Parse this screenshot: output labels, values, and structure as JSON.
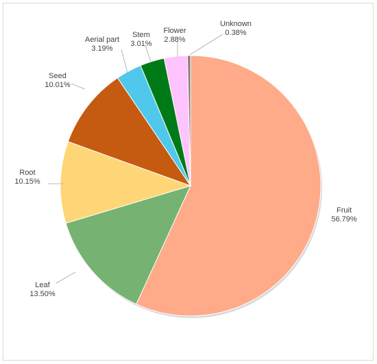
{
  "chart_data": {
    "type": "pie",
    "title": "",
    "legend": "none",
    "slices": [
      {
        "label": "Fruit",
        "value": 56.79,
        "value_label": "56.79%",
        "color": "#FFAA88"
      },
      {
        "label": "Leaf",
        "value": 13.5,
        "value_label": "13.50%",
        "color": "#76B373"
      },
      {
        "label": "Root",
        "value": 10.15,
        "value_label": "10.15%",
        "color": "#FFD677"
      },
      {
        "label": "Seed",
        "value": 10.01,
        "value_label": "10.01%",
        "color": "#C55A11"
      },
      {
        "label": "Aerial part",
        "value": 3.19,
        "value_label": "3.19%",
        "color": "#4FC8EC"
      },
      {
        "label": "Stem",
        "value": 3.01,
        "value_label": "3.01%",
        "color": "#007A17"
      },
      {
        "label": "Flower",
        "value": 2.88,
        "value_label": "2.88%",
        "color": "#FFC3FF"
      },
      {
        "label": "Unknown",
        "value": 0.38,
        "value_label": "0.38%",
        "color": "#7F7F7F"
      }
    ]
  }
}
